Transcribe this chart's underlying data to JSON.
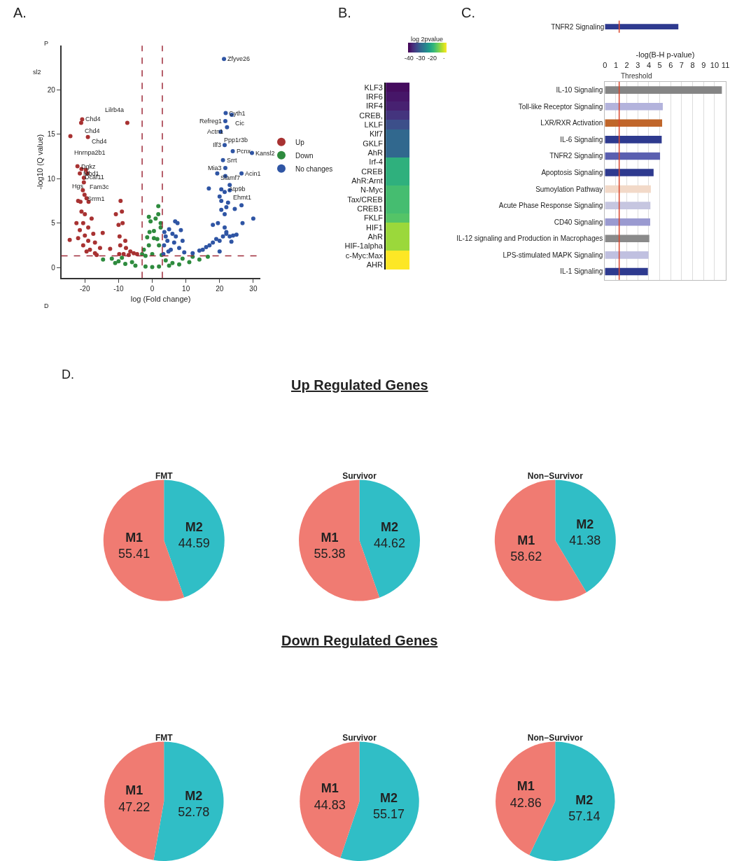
{
  "chart_data": [
    {
      "type": "scatter",
      "xlabel": "log (Fold change)",
      "ylabel": "-log10 (Q value)",
      "xlim": [
        -27,
        32
      ],
      "ylim": [
        -1.2,
        25
      ],
      "xticks": [
        -20,
        -10,
        0,
        10,
        20,
        30
      ],
      "yticks": [
        0,
        5,
        10,
        15,
        20
      ],
      "marker": "circle",
      "legend": "right",
      "ref_lines": [
        {
          "axis": "x",
          "value": -3,
          "color": "#9e2a3a",
          "line_style": "dashed"
        },
        {
          "axis": "x",
          "value": 3,
          "color": "#9e2a3a",
          "line_style": "dashed"
        },
        {
          "axis": "y",
          "value": 1.3,
          "color": "#9e2a3a",
          "line_style": "dashed"
        }
      ],
      "annotations": [
        "A.",
        "P",
        "sl2",
        "D",
        {
          "text": "Zfyve26",
          "x": 21.3,
          "y": 23.5
        },
        {
          "text": "Cyth1",
          "x": 21.8,
          "y": 17.4
        },
        {
          "text": "Cic",
          "x": 23.6,
          "y": 17.2
        },
        {
          "text": "Refreg1",
          "x": 21.7,
          "y": 16.5
        },
        {
          "text": "Actn1",
          "x": 22.2,
          "y": 15.8
        },
        {
          "text": "Ppp1r3b",
          "x": 20.3,
          "y": 15.3
        },
        {
          "text": "Ilf3",
          "x": 21.5,
          "y": 13.8
        },
        {
          "text": "Pcnx",
          "x": 23.9,
          "y": 13.1
        },
        {
          "text": "Kansl2",
          "x": 29.6,
          "y": 12.9
        },
        {
          "text": "Srrt",
          "x": 21.0,
          "y": 12.1
        },
        {
          "text": "Mia3",
          "x": 21.7,
          "y": 11.2
        },
        {
          "text": "Slamf7",
          "x": 19.3,
          "y": 10.6
        },
        {
          "text": "Atp9b",
          "x": 21.7,
          "y": 10.3
        },
        {
          "text": "Acin1",
          "x": 26.5,
          "y": 10.6
        },
        {
          "text": "Ehmt1",
          "x": 23.0,
          "y": 9.3
        },
        {
          "text": "Chd4",
          "x": -20.8,
          "y": 16.7
        },
        {
          "text": "Chd4",
          "x": -21.1,
          "y": 16.3
        },
        {
          "text": "Chd4",
          "x": -19.1,
          "y": 14.7
        },
        {
          "text": "Hnrnpa2b1",
          "x": -24.3,
          "y": 14.8
        },
        {
          "text": "Lilrb4a",
          "x": -7.4,
          "y": 16.3
        },
        {
          "text": "Dgkz",
          "x": -22.2,
          "y": 11.4
        },
        {
          "text": "Dcaf11",
          "x": -21.0,
          "y": 11.1
        },
        {
          "text": "Fam3c",
          "x": -19.7,
          "y": 11.0
        },
        {
          "text": "Hgs",
          "x": -19.3,
          "y": 10.6
        },
        {
          "text": "Mbd1",
          "x": -21.5,
          "y": 10.6
        },
        {
          "text": "Srrm1",
          "x": -20.3,
          "y": 10.1
        }
      ],
      "series": [
        {
          "name": "Up",
          "color": "#a83232",
          "x": [
            -20.8,
            -21.1,
            -19.1,
            -24.3,
            -7.4,
            -22.2,
            -21.0,
            -19.7,
            -19.3,
            -21.5,
            -20.3,
            -20.3,
            -20.6,
            -20.1,
            -19.5,
            -22.0,
            -21.3,
            -18.9,
            -21.0,
            -20.0,
            -18.0,
            -22.5,
            -20.5,
            -19.0,
            -21.5,
            -20.0,
            -17.5,
            -14.7,
            -22.0,
            -24.5,
            -19.0,
            -17.0,
            -15.5,
            -20.5,
            -18.5,
            -17.0,
            -16.5,
            -19.5,
            -12.5,
            -10.8,
            -9.4,
            -9.0,
            -8.8,
            -10.0,
            -9.7,
            -8.0,
            -9.5,
            -7.8,
            -6.5,
            -5.5,
            -8.5,
            -4.5,
            -9.8,
            -7.0
          ],
          "values": [
            16.7,
            16.3,
            14.7,
            14.8,
            16.3,
            11.4,
            11.1,
            11.0,
            10.6,
            10.6,
            10.1,
            9.6,
            8.7,
            8.2,
            7.8,
            7.5,
            7.4,
            7.4,
            6.3,
            6.0,
            5.5,
            5.0,
            5.0,
            4.5,
            4.2,
            3.6,
            3.8,
            3.9,
            3.3,
            3.1,
            3.0,
            2.8,
            2.2,
            2.5,
            2.0,
            1.6,
            1.4,
            1.8,
            2.1,
            6.0,
            7.5,
            6.3,
            5.0,
            4.8,
            3.5,
            3.0,
            2.5,
            2.2,
            1.8,
            1.6,
            1.5,
            1.5,
            1.5,
            1.4
          ]
        },
        {
          "name": "Down",
          "color": "#2e8b3e",
          "x": [
            -14.6,
            -10,
            -8,
            -5,
            -2,
            0,
            2,
            5,
            8,
            11,
            14,
            16.5,
            -12,
            -9,
            -3,
            -2.5,
            -1.0,
            -1.5,
            0.5,
            1.5,
            2.0,
            -0.8,
            0.5,
            2.5,
            2.5,
            -0.5,
            1.0,
            -1.0,
            1.8,
            1.8,
            0,
            -2.0,
            2.8,
            9.0,
            12.0,
            -11,
            4,
            6,
            -6
          ],
          "values": [
            0.9,
            0.7,
            0.4,
            0.2,
            0.1,
            0.05,
            0.1,
            0.2,
            0.35,
            0.6,
            0.9,
            1.2,
            1.0,
            1.1,
            1.5,
            2.0,
            2.5,
            3.4,
            3.3,
            3.2,
            2.5,
            4.0,
            4.1,
            4.5,
            5.0,
            5.2,
            5.5,
            5.7,
            6.0,
            6.9,
            1.5,
            1.3,
            1.4,
            1.0,
            1.2,
            0.5,
            0.8,
            0.5,
            0.6
          ]
        },
        {
          "name": "No changes",
          "color": "#2f55a4",
          "x": [
            21.3,
            21.8,
            23.6,
            21.7,
            22.2,
            20.3,
            21.5,
            23.9,
            29.6,
            21.0,
            21.7,
            19.3,
            21.7,
            26.5,
            23.0,
            3.3,
            3.5,
            4.0,
            3.6,
            4.5,
            5.0,
            5.5,
            6.0,
            6.5,
            7.0,
            7.5,
            8.0,
            9.0,
            9.5,
            6.8,
            4.8,
            8.5,
            12,
            14,
            15,
            16,
            17,
            18,
            19,
            20,
            21,
            22,
            23,
            24,
            25,
            18,
            19.5,
            21.5,
            20.5,
            21.5,
            22,
            20.5,
            22.5,
            24.5,
            26.5,
            26.8,
            30.0,
            20.0,
            20.5,
            21.5,
            23,
            16.8,
            22,
            23.5,
            20
          ],
          "values": [
            23.5,
            17.4,
            17.2,
            16.5,
            15.8,
            15.3,
            13.8,
            13.1,
            12.9,
            12.1,
            11.2,
            10.6,
            10.3,
            10.6,
            9.3,
            1.5,
            2.5,
            3.5,
            4.0,
            3.0,
            4.3,
            2.0,
            3.8,
            2.8,
            3.5,
            5.0,
            2.2,
            3.0,
            1.7,
            5.2,
            1.8,
            4.2,
            1.6,
            1.9,
            2.0,
            2.3,
            2.5,
            2.8,
            3.2,
            3.0,
            3.5,
            3.8,
            3.5,
            3.6,
            3.7,
            4.8,
            5.0,
            4.5,
            6.5,
            6.0,
            6.8,
            7.5,
            7.3,
            6.6,
            7.0,
            5.0,
            5.5,
            8.0,
            8.8,
            8.5,
            8.7,
            8.9,
            4.0,
            2.9,
            1.8
          ]
        }
      ]
    },
    {
      "type": "heatmap",
      "categories": [
        null
      ],
      "y_categories": [
        "KLF3",
        "IRF6",
        "IRF4",
        "CREB,",
        "LKLF",
        "Klf7",
        "GKLF",
        "AhR",
        "Irf-4",
        "CREB",
        "AhR:Arnt",
        "N-Myc",
        "Tax/CREB",
        "CREB1",
        "FKLF",
        "HIF1",
        "AhR",
        "HIF-1alpha",
        "c-Myc:Max",
        "AHR"
      ],
      "cells": [
        [
          -40
        ],
        [
          -39
        ],
        [
          -38
        ],
        [
          -36
        ],
        [
          -33
        ],
        [
          -30
        ],
        [
          -30
        ],
        [
          -30
        ],
        [
          -20
        ],
        [
          -20
        ],
        [
          -20
        ],
        [
          -18
        ],
        [
          -18
        ],
        [
          -18
        ],
        [
          -17
        ],
        [
          -13
        ],
        [
          -13
        ],
        [
          -13
        ],
        [
          -8
        ],
        [
          -8
        ]
      ],
      "clabel": "log 2pvalue",
      "clim": [
        -41,
        -8
      ],
      "cticks": [
        -40,
        -30,
        -20,
        {
          "value": -10,
          "label": "·"
        }
      ],
      "annotations": [
        "B."
      ]
    },
    {
      "type": "bar",
      "orientation": "horizontal",
      "categories": [
        "TNFR2 Signaling"
      ],
      "values": [
        6.7
      ],
      "colors": [
        "#2e3a8f"
      ],
      "xlim": [
        0,
        11
      ],
      "xticks": [
        0,
        1,
        2,
        3,
        4,
        5,
        6,
        7,
        8,
        9,
        10,
        11
      ],
      "tick_labels": "y",
      "ref_lines": [
        {
          "axis": "x",
          "value": 1.3,
          "color": "#d9452b"
        }
      ]
    },
    {
      "type": "bar",
      "orientation": "horizontal",
      "categories": [
        "IL-10 Signaling",
        "Toll-like Receptor Signaling",
        "LXR/RXR Activation",
        "IL-6 Signaling",
        "TNFR2 Signaling",
        "Apoptosis Signaling",
        "Sumoylation Pathway",
        "Acute Phase Response Signaling",
        "CD40 Signaling",
        "IL-12 signaling and Production in Macrophages",
        "LPS-stimulated MAPK Signaling",
        "IL-1 Signaling"
      ],
      "values": [
        10.67,
        5.28,
        5.22,
        5.18,
        5.03,
        4.44,
        4.19,
        4.15,
        4.13,
        4.05,
        3.98,
        3.92
      ],
      "colors": [
        "#858585",
        "#b3b3dc",
        "#c0662a",
        "#2e3a8f",
        "#5a5fb0",
        "#2e3a8f",
        "#f2d9c8",
        "#c6c6e0",
        "#9a9ad0",
        "#8a8a8a",
        "#c0c0e0",
        "#2e3a8f"
      ],
      "xlim": [
        0,
        11
      ],
      "xticks": [
        0,
        1,
        2,
        3,
        4,
        5,
        6,
        7,
        8,
        9,
        10,
        11
      ],
      "xlabel": "-log(B-H p-value)",
      "grid": "x",
      "ref_lines": [
        {
          "axis": "x",
          "value": 1.3,
          "label": "Threshold",
          "color": "#d9452b"
        }
      ],
      "annotations": [
        "C."
      ]
    },
    {
      "type": "pie",
      "title": "FMT",
      "categories": [
        "M2",
        "M1"
      ],
      "values": [
        44.59,
        55.41
      ],
      "colors": [
        "#30bec6",
        "#f07b72"
      ],
      "data_labels": true,
      "annotations": [
        "D."
      ]
    },
    {
      "type": "pie",
      "title": "Survivor",
      "subtitle": "Up Regulated Genes",
      "categories": [
        "M2",
        "M1"
      ],
      "values": [
        44.62,
        55.38
      ],
      "colors": [
        "#30bec6",
        "#f07b72"
      ],
      "data_labels": true
    },
    {
      "type": "pie",
      "title": "Non−Survivor",
      "categories": [
        "M2",
        "M1"
      ],
      "values": [
        41.38,
        58.62
      ],
      "colors": [
        "#30bec6",
        "#f07b72"
      ],
      "data_labels": true
    },
    {
      "type": "pie",
      "title": "FMT",
      "categories": [
        "M2",
        "M1"
      ],
      "values": [
        52.78,
        47.22
      ],
      "colors": [
        "#30bec6",
        "#f07b72"
      ],
      "data_labels": true
    },
    {
      "type": "pie",
      "title": "Survivor",
      "subtitle": "Down Regulated Genes",
      "categories": [
        "M2",
        "M1"
      ],
      "values": [
        55.17,
        44.83
      ],
      "colors": [
        "#30bec6",
        "#f07b72"
      ],
      "data_labels": true
    },
    {
      "type": "pie",
      "title": "Non−Survivor",
      "categories": [
        "M2",
        "M1"
      ],
      "values": [
        57.14,
        42.86
      ],
      "colors": [
        "#30bec6",
        "#f07b72"
      ],
      "data_labels": true
    }
  ]
}
